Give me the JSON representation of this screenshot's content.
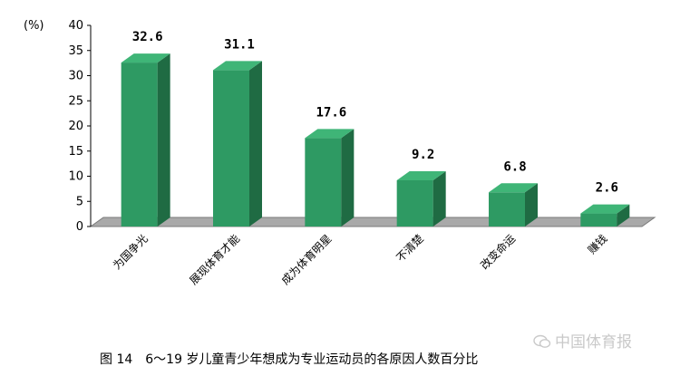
{
  "chart_data": {
    "type": "bar",
    "unit_label": "(%)",
    "categories": [
      "为国争光",
      "展现体育才能",
      "成为体育明星",
      "不清楚",
      "改变命运",
      "赚钱"
    ],
    "values": [
      32.6,
      31.1,
      17.6,
      9.2,
      6.8,
      2.6
    ],
    "value_labels": [
      "32.6",
      "31.1",
      "17.6",
      "9.2",
      "6.8",
      "2.6"
    ],
    "yticks": [
      "0",
      "5",
      "10",
      "15",
      "20",
      "25",
      "30",
      "35",
      "40"
    ],
    "ylim": [
      0,
      40
    ],
    "grid": false,
    "colors": {
      "bar_front": "#2e9a63",
      "bar_top": "#3fb577",
      "bar_side": "#1f6b43",
      "floor": "#a9a9a9",
      "floor_edge": "#7a7a7a"
    }
  },
  "caption": "图 14　6～19 岁儿童青少年想成为专业运动员的各原因人数百分比",
  "watermark": "中国体育报",
  "watermark_icon": "wechat-icon"
}
